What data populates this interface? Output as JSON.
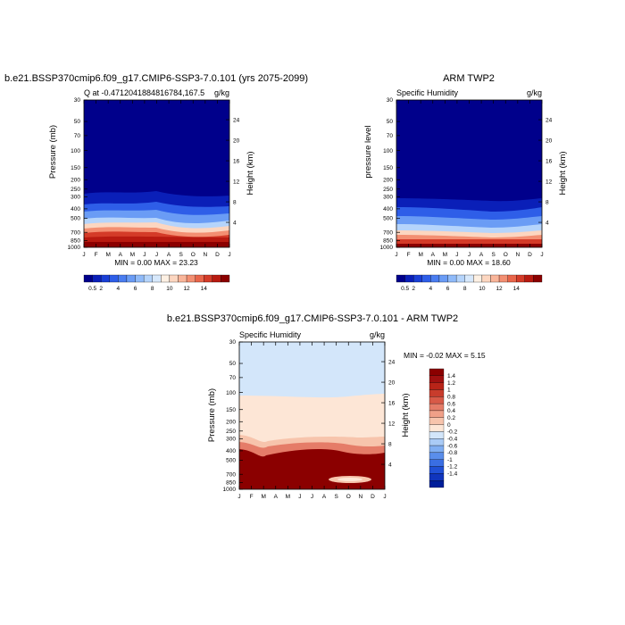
{
  "chart_data": [
    {
      "type": "heatmap",
      "title": "b.e21.BSSP370cmip6.f09_g17.CMIP6-SSP3-7.0.101 (yrs 2075-2099)",
      "subtitle_left": "Q at -0.471204188481678​4,167.5",
      "subtitle_right": "g/kg",
      "ylabel": "Pressure (mb)",
      "ylabel_right": "Height (km)",
      "x_ticks": [
        "J",
        "F",
        "M",
        "A",
        "M",
        "J",
        "J",
        "A",
        "S",
        "O",
        "N",
        "D",
        "J"
      ],
      "y_ticks": [
        "30",
        "50",
        "70",
        "100",
        "150",
        "200",
        "250",
        "300",
        "400",
        "500",
        "700",
        "850",
        "1000"
      ],
      "y2_ticks": [
        "24",
        "20",
        "16",
        "12",
        "8",
        "4"
      ],
      "min_max": "MIN =   0.00 MAX =  23.23",
      "colorbar_labels": [
        "0.5",
        "2",
        "4",
        "6",
        "8",
        "10",
        "12",
        "14"
      ],
      "colors": [
        "#00008b",
        "#0a1fb8",
        "#1a3fd6",
        "#2e5ee8",
        "#4a7df0",
        "#6a9cf5",
        "#8fbaf9",
        "#b5d4fb",
        "#d7e8fb",
        "#fdf0e3",
        "#fcd6c0",
        "#f9b59a",
        "#f38f72",
        "#e8654a",
        "#d43b28",
        "#b81a10",
        "#8b0000"
      ]
    },
    {
      "type": "heatmap",
      "title": "ARM TWP2",
      "subtitle_left": "Specific Humidity",
      "subtitle_right": "g/kg",
      "ylabel": "pressure level",
      "ylabel_right": "Height (km)",
      "x_ticks": [
        "J",
        "F",
        "M",
        "A",
        "M",
        "J",
        "J",
        "A",
        "S",
        "O",
        "N",
        "D",
        "J"
      ],
      "y_ticks": [
        "30",
        "50",
        "70",
        "100",
        "150",
        "200",
        "250",
        "300",
        "400",
        "500",
        "700",
        "850",
        "1000"
      ],
      "y2_ticks": [
        "24",
        "20",
        "16",
        "12",
        "8",
        "4"
      ],
      "min_max": "MIN =   0.00 MAX =  18.60",
      "colorbar_labels": [
        "0.5",
        "2",
        "4",
        "6",
        "8",
        "10",
        "12",
        "14"
      ]
    },
    {
      "type": "heatmap",
      "title": "b.e21.BSSP370cmip6.f09_g17.CMIP6-SSP3-7.0.101 - ARM TWP2",
      "subtitle_left": "Specific Humidity",
      "subtitle_right": "g/kg",
      "ylabel": "Pressure (mb)",
      "ylabel_right": "Height (km)",
      "x_ticks": [
        "J",
        "F",
        "M",
        "A",
        "M",
        "J",
        "J",
        "A",
        "S",
        "O",
        "N",
        "D",
        "J"
      ],
      "y_ticks": [
        "30",
        "50",
        "70",
        "100",
        "150",
        "200",
        "250",
        "300",
        "400",
        "500",
        "700",
        "850",
        "1000"
      ],
      "y2_ticks": [
        "24",
        "20",
        "16",
        "12",
        "8",
        "4"
      ],
      "min_max": "MIN =  -0.02 MAX =   5.15",
      "colorbar_labels": [
        "1.4",
        "1.2",
        "1",
        "0.8",
        "0.6",
        "0.4",
        "0.2",
        "0",
        "-0.2",
        "-0.4",
        "-0.6",
        "-0.8",
        "-1",
        "-1.2",
        "-1.4"
      ],
      "colors": [
        "#8b0000",
        "#a01010",
        "#b82418",
        "#c83c2c",
        "#d85a48",
        "#e57c68",
        "#f0a088",
        "#f7c4ac",
        "#fde6d6",
        "#d3e6fa",
        "#aacbf6",
        "#80aef2",
        "#5a8eeb",
        "#3a6ee3",
        "#2050d6",
        "#1035bd",
        "#001e9a"
      ]
    }
  ]
}
